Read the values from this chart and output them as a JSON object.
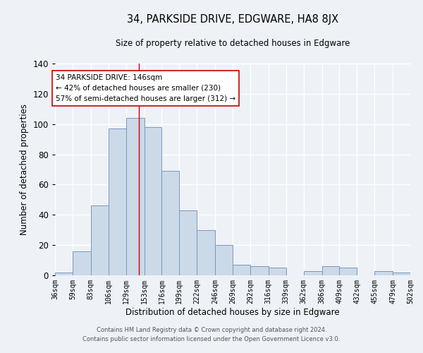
{
  "title1": "34, PARKSIDE DRIVE, EDGWARE, HA8 8JX",
  "title2": "Size of property relative to detached houses in Edgware",
  "xlabel": "Distribution of detached houses by size in Edgware",
  "ylabel": "Number of detached properties",
  "bin_edges": [
    36,
    59,
    83,
    106,
    129,
    153,
    176,
    199,
    222,
    246,
    269,
    292,
    316,
    339,
    362,
    386,
    409,
    432,
    455,
    479,
    502
  ],
  "bar_heights": [
    2,
    16,
    46,
    97,
    104,
    98,
    69,
    43,
    30,
    20,
    7,
    6,
    5,
    0,
    3,
    6,
    5,
    0,
    3,
    2
  ],
  "bar_color": "#ccd9e8",
  "bar_edgecolor": "#7799bb",
  "vline_x": 146,
  "vline_color": "#cc0000",
  "annotation_title": "34 PARKSIDE DRIVE: 146sqm",
  "annotation_line1": "← 42% of detached houses are smaller (230)",
  "annotation_line2": "57% of semi-detached houses are larger (312) →",
  "ylim": [
    0,
    140
  ],
  "background_color": "#eef2f7",
  "grid_color": "#ffffff",
  "footer_line1": "Contains HM Land Registry data © Crown copyright and database right 2024.",
  "footer_line2": "Contains public sector information licensed under the Open Government Licence v3.0."
}
